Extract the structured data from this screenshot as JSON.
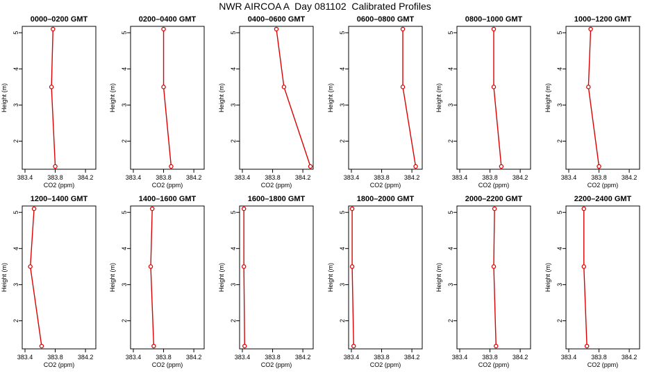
{
  "title": "NWR AIRCOA A  Day 081102  Calibrated Profiles",
  "colors": {
    "series": "#dd0000",
    "axis": "#000000",
    "background": "#ffffff"
  },
  "chart_data": [
    {
      "type": "line",
      "title": "0000–0200 GMT",
      "xlabel": "CO2 (ppm)",
      "ylabel": "Height (m)",
      "x": [
        383.8,
        383.75,
        383.77
      ],
      "y": [
        1.3,
        3.5,
        5.1
      ],
      "xlim": [
        383.4,
        384.3
      ],
      "xticks": [
        "383.4",
        "383.8",
        "384.2"
      ],
      "ylim": [
        1.3,
        5.1
      ],
      "yticks": [
        "2",
        "3",
        "4",
        "5"
      ]
    },
    {
      "type": "line",
      "title": "0200–0400 GMT",
      "xlabel": "CO2 (ppm)",
      "ylabel": "Height (m)",
      "x": [
        383.9,
        383.8,
        383.8
      ],
      "y": [
        1.3,
        3.5,
        5.1
      ],
      "xlim": [
        383.4,
        384.3
      ],
      "xticks": [
        "383.4",
        "383.8",
        "384.2"
      ],
      "ylim": [
        1.3,
        5.1
      ],
      "yticks": [
        "2",
        "3",
        "4",
        "5"
      ]
    },
    {
      "type": "line",
      "title": "0400–0600 GMT",
      "xlabel": "CO2 (ppm)",
      "ylabel": "Height (m)",
      "x": [
        384.3,
        383.95,
        383.85
      ],
      "y": [
        1.3,
        3.5,
        5.1
      ],
      "xlim": [
        383.4,
        384.3
      ],
      "xticks": [
        "383.4",
        "383.8",
        "384.2"
      ],
      "ylim": [
        1.3,
        5.1
      ],
      "yticks": [
        "2",
        "3",
        "4",
        "5"
      ]
    },
    {
      "type": "line",
      "title": "0600–0800 GMT",
      "xlabel": "CO2 (ppm)",
      "ylabel": "Height (m)",
      "x": [
        384.25,
        384.08,
        384.08
      ],
      "y": [
        1.3,
        3.5,
        5.1
      ],
      "xlim": [
        383.4,
        384.3
      ],
      "xticks": [
        "383.4",
        "383.8",
        "384.2"
      ],
      "ylim": [
        1.3,
        5.1
      ],
      "yticks": [
        "2",
        "3",
        "4",
        "5"
      ]
    },
    {
      "type": "line",
      "title": "0800–1000 GMT",
      "xlabel": "CO2 (ppm)",
      "ylabel": "Height (m)",
      "x": [
        383.95,
        383.85,
        383.85
      ],
      "y": [
        1.3,
        3.5,
        5.1
      ],
      "xlim": [
        383.4,
        384.3
      ],
      "xticks": [
        "383.4",
        "383.8",
        "384.2"
      ],
      "ylim": [
        1.3,
        5.1
      ],
      "yticks": [
        "2",
        "3",
        "4",
        "5"
      ]
    },
    {
      "type": "line",
      "title": "1000–1200 GMT",
      "xlabel": "CO2 (ppm)",
      "ylabel": "Height (m)",
      "x": [
        383.8,
        383.66,
        383.69
      ],
      "y": [
        1.3,
        3.5,
        5.1
      ],
      "xlim": [
        383.4,
        384.3
      ],
      "xticks": [
        "383.4",
        "383.8",
        "384.2"
      ],
      "ylim": [
        1.3,
        5.1
      ],
      "yticks": [
        "2",
        "3",
        "4",
        "5"
      ]
    },
    {
      "type": "line",
      "title": "1200–1400 GMT",
      "xlabel": "CO2 (ppm)",
      "ylabel": "Height (m)",
      "x": [
        383.62,
        383.47,
        383.52
      ],
      "y": [
        1.3,
        3.5,
        5.1
      ],
      "xlim": [
        383.4,
        384.3
      ],
      "xticks": [
        "383.4",
        "383.8",
        "384.2"
      ],
      "ylim": [
        1.3,
        5.1
      ],
      "yticks": [
        "2",
        "3",
        "4",
        "5"
      ]
    },
    {
      "type": "line",
      "title": "1400–1600 GMT",
      "xlabel": "CO2 (ppm)",
      "ylabel": "Height (m)",
      "x": [
        383.67,
        383.63,
        383.65
      ],
      "y": [
        1.3,
        3.5,
        5.1
      ],
      "xlim": [
        383.4,
        384.3
      ],
      "xticks": [
        "383.4",
        "383.8",
        "384.2"
      ],
      "ylim": [
        1.3,
        5.1
      ],
      "yticks": [
        "2",
        "3",
        "4",
        "5"
      ]
    },
    {
      "type": "line",
      "title": "1600–1800 GMT",
      "xlabel": "CO2 (ppm)",
      "ylabel": "Height (m)",
      "x": [
        383.43,
        383.42,
        383.42
      ],
      "y": [
        1.3,
        3.5,
        5.1
      ],
      "xlim": [
        383.4,
        384.3
      ],
      "xticks": [
        "383.4",
        "383.8",
        "384.2"
      ],
      "ylim": [
        1.3,
        5.1
      ],
      "yticks": [
        "2",
        "3",
        "4",
        "5"
      ]
    },
    {
      "type": "line",
      "title": "1800–2000 GMT",
      "xlabel": "CO2 (ppm)",
      "ylabel": "Height (m)",
      "x": [
        383.43,
        383.41,
        383.41
      ],
      "y": [
        1.3,
        3.5,
        5.1
      ],
      "xlim": [
        383.4,
        384.3
      ],
      "xticks": [
        "383.4",
        "383.8",
        "384.2"
      ],
      "ylim": [
        1.3,
        5.1
      ],
      "yticks": [
        "2",
        "3",
        "4",
        "5"
      ]
    },
    {
      "type": "line",
      "title": "2000–2200 GMT",
      "xlabel": "CO2 (ppm)",
      "ylabel": "Height (m)",
      "x": [
        383.88,
        383.85,
        383.86
      ],
      "y": [
        1.3,
        3.5,
        5.1
      ],
      "xlim": [
        383.4,
        384.3
      ],
      "xticks": [
        "383.4",
        "383.8",
        "384.2"
      ],
      "ylim": [
        1.3,
        5.1
      ],
      "yticks": [
        "2",
        "3",
        "4",
        "5"
      ]
    },
    {
      "type": "line",
      "title": "2200–2400 GMT",
      "xlabel": "CO2 (ppm)",
      "ylabel": "Height (m)",
      "x": [
        383.64,
        383.6,
        383.6
      ],
      "y": [
        1.3,
        3.5,
        5.1
      ],
      "xlim": [
        383.4,
        384.3
      ],
      "xticks": [
        "383.4",
        "383.8",
        "384.2"
      ],
      "ylim": [
        1.3,
        5.1
      ],
      "yticks": [
        "2",
        "3",
        "4",
        "5"
      ]
    }
  ]
}
